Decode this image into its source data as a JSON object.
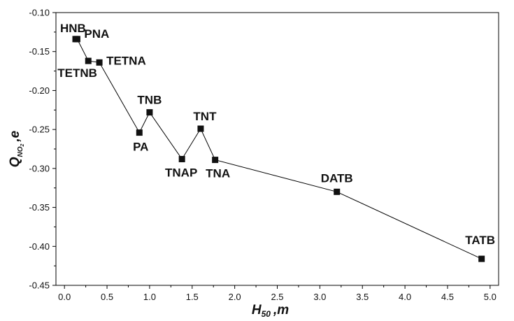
{
  "chart_data": {
    "type": "line",
    "title": "",
    "xlabel": {
      "main": "H",
      "sub": "50",
      "rest": ",m"
    },
    "ylabel": {
      "main": "Q",
      "sub": "NO",
      "sub2": "2",
      "rest": ",e"
    },
    "xlim": [
      -0.1,
      5.1
    ],
    "ylim": [
      -0.45,
      -0.1
    ],
    "xticks": [
      {
        "v": 0.0,
        "label": "0.0"
      },
      {
        "v": 0.5,
        "label": "0.5"
      },
      {
        "v": 1.0,
        "label": "1.0"
      },
      {
        "v": 1.5,
        "label": "1.5"
      },
      {
        "v": 2.0,
        "label": "2.0"
      },
      {
        "v": 2.5,
        "label": "2.5"
      },
      {
        "v": 3.0,
        "label": "3.0"
      },
      {
        "v": 3.5,
        "label": "3.5"
      },
      {
        "v": 4.0,
        "label": "4.0"
      },
      {
        "v": 4.5,
        "label": "4.5"
      },
      {
        "v": 5.0,
        "label": "5.0"
      }
    ],
    "yticks": [
      {
        "v": -0.1,
        "label": "-0.10"
      },
      {
        "v": -0.15,
        "label": "-0.15"
      },
      {
        "v": -0.2,
        "label": "-0.20"
      },
      {
        "v": -0.25,
        "label": "-0.25"
      },
      {
        "v": -0.3,
        "label": "-0.30"
      },
      {
        "v": -0.35,
        "label": "-0.35"
      },
      {
        "v": -0.4,
        "label": "-0.40"
      },
      {
        "v": -0.45,
        "label": "-0.45"
      }
    ],
    "grid": false,
    "marker": "square",
    "points": [
      {
        "label": "HNB",
        "x": 0.13,
        "y": -0.134
      },
      {
        "label": "PNA",
        "x": 0.15,
        "y": -0.134
      },
      {
        "label": "TETNB",
        "x": 0.28,
        "y": -0.162
      },
      {
        "label": "TETNA",
        "x": 0.41,
        "y": -0.164
      },
      {
        "label": "PA",
        "x": 0.88,
        "y": -0.254
      },
      {
        "label": "TNB",
        "x": 1.0,
        "y": -0.228
      },
      {
        "label": "TNAP",
        "x": 1.38,
        "y": -0.288
      },
      {
        "label": "TNT",
        "x": 1.6,
        "y": -0.249
      },
      {
        "label": "TNA",
        "x": 1.77,
        "y": -0.289
      },
      {
        "label": "DATB",
        "x": 3.2,
        "y": -0.33
      },
      {
        "label": "TATB",
        "x": 4.9,
        "y": -0.416
      }
    ]
  }
}
